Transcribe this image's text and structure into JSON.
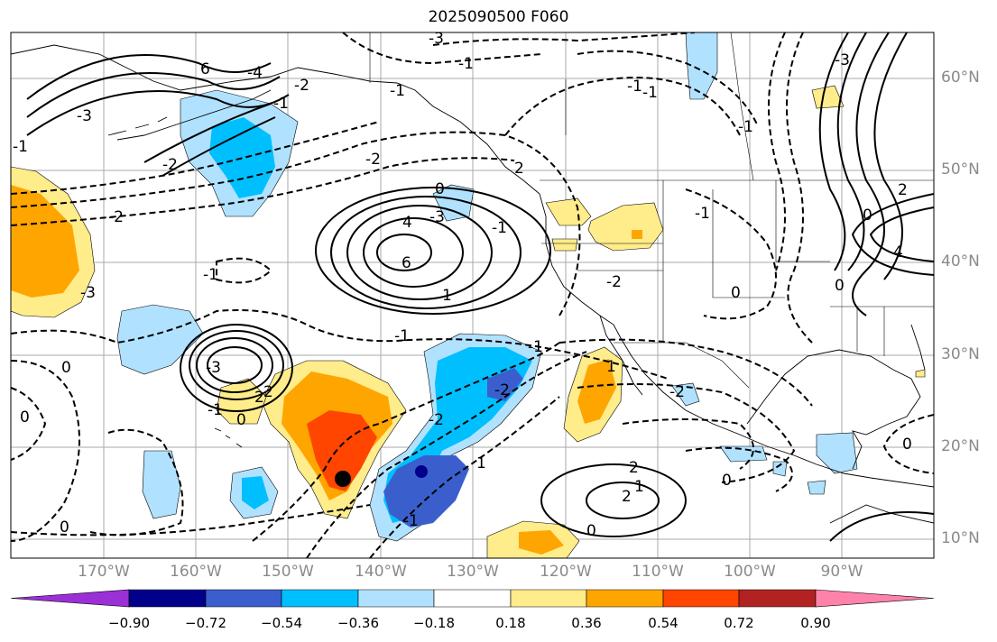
{
  "map": {
    "title": "2025090500 F060",
    "lon_labels": [
      "170°W",
      "160°W",
      "150°W",
      "140°W",
      "130°W",
      "120°W",
      "110°W",
      "100°W",
      "90°W"
    ],
    "lat_labels": [
      "60°N",
      "50°N",
      "40°N",
      "30°N",
      "20°N",
      "10°N"
    ],
    "extent": {
      "lon_min": -180,
      "lon_max": -80,
      "lat_min": 7.5,
      "lat_max": 65
    },
    "contour_labels": [
      "-3",
      "6",
      "-3",
      "-2",
      "0",
      "-3",
      "-1",
      "2",
      "-2",
      "0",
      "4",
      "-3",
      "6",
      "-2",
      "-1",
      "0",
      "-1",
      "-2",
      "1",
      "-1",
      "0",
      "1",
      "4",
      "-2",
      "-1",
      "0",
      "-3",
      "0",
      "2",
      "-1",
      "-2",
      "-1",
      "-1",
      "2",
      "-2",
      "-2",
      "0",
      "-1",
      "1",
      "0",
      "2",
      "-1",
      "-1",
      "0",
      "-1",
      "-3",
      "2",
      "0",
      "-4",
      "2",
      "1",
      "-1",
      "-1",
      "0"
    ]
  },
  "colorbar": {
    "tick_labels": [
      "−0.90",
      "−0.72",
      "−0.54",
      "−0.36",
      "−0.18",
      "0.18",
      "0.36",
      "0.54",
      "0.72",
      "0.90"
    ],
    "colors": [
      "#9b30d6",
      "#00008b",
      "#3a5fcd",
      "#00bfff",
      "#b0e2ff",
      "#ffffff",
      "#ffec8b",
      "#ffa500",
      "#ff4500",
      "#b22222",
      "#ff82ab"
    ]
  },
  "markers": {
    "dot_color": "#000000"
  }
}
